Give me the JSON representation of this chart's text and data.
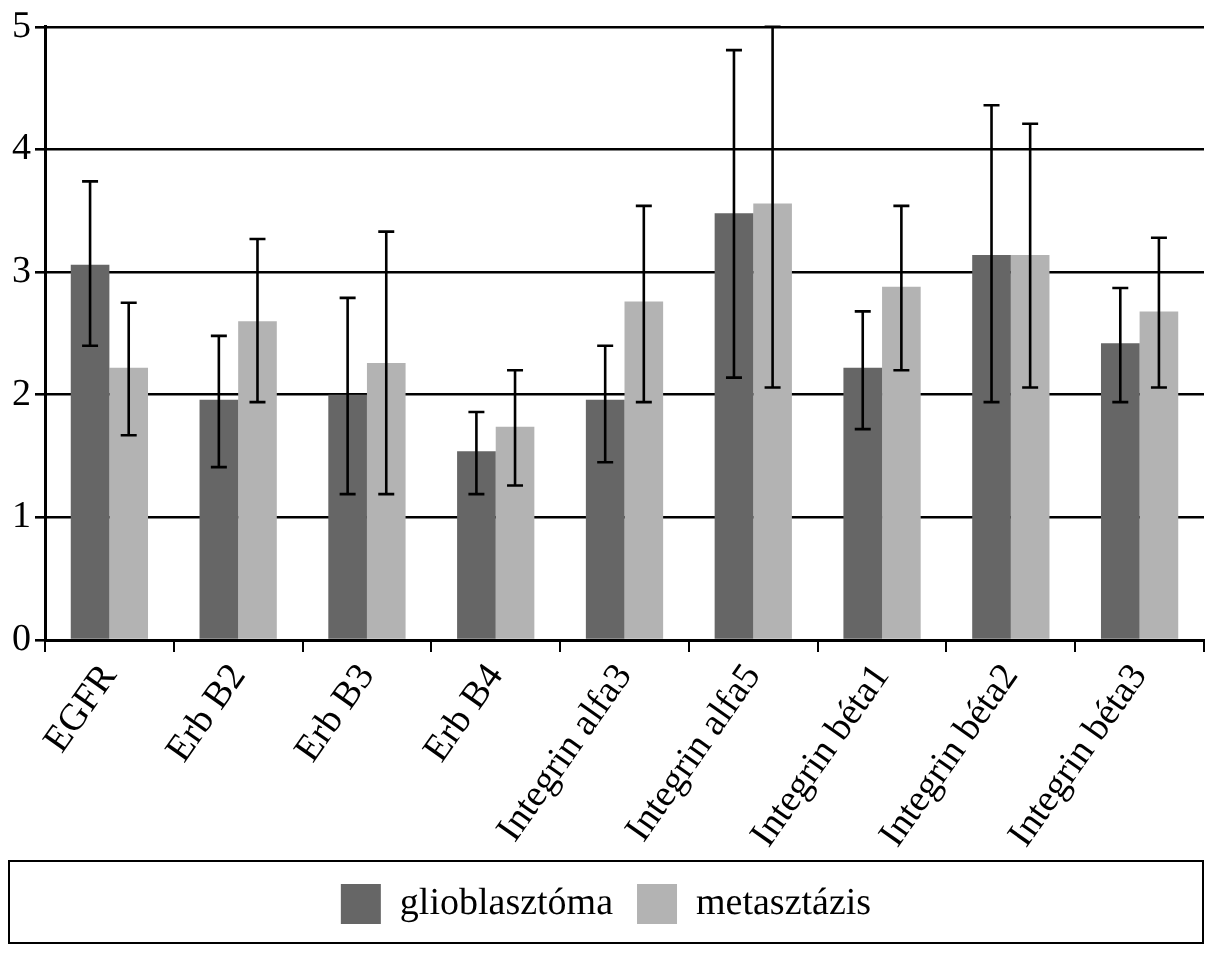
{
  "chart_data": {
    "type": "bar",
    "categories": [
      "EGFR",
      "Erb B2",
      "Erb B3",
      "Erb B4",
      "Integrin alfa3",
      "Integrin alfa5",
      "Integrin béta1",
      "Integrin béta2",
      "Integrin béta3"
    ],
    "series": [
      {
        "name": "glioblasztóma",
        "color": "#666666",
        "values": [
          3.06,
          1.96,
          2.0,
          1.54,
          1.96,
          3.48,
          2.22,
          3.14,
          2.42
        ],
        "errors": [
          [
            2.4,
            3.74
          ],
          [
            1.41,
            2.48
          ],
          [
            1.19,
            2.79
          ],
          [
            1.19,
            1.86
          ],
          [
            1.45,
            2.4
          ],
          [
            2.14,
            4.81
          ],
          [
            1.72,
            2.68
          ],
          [
            1.94,
            4.36
          ],
          [
            1.94,
            2.87
          ]
        ]
      },
      {
        "name": "metasztázis",
        "color": "#b3b3b3",
        "values": [
          2.22,
          2.6,
          2.26,
          1.74,
          2.76,
          3.56,
          2.88,
          3.14,
          2.68
        ],
        "errors": [
          [
            1.67,
            2.75
          ],
          [
            1.94,
            3.27
          ],
          [
            1.19,
            3.33
          ],
          [
            1.26,
            2.2
          ],
          [
            1.94,
            3.54
          ],
          [
            2.06,
            5.0
          ],
          [
            2.2,
            3.54
          ],
          [
            2.06,
            4.21
          ],
          [
            2.06,
            3.28
          ]
        ]
      }
    ],
    "ylim": [
      0,
      5
    ],
    "yticks": [
      0,
      1,
      2,
      3,
      4,
      5
    ],
    "grid": "y",
    "legend": "bottom"
  }
}
